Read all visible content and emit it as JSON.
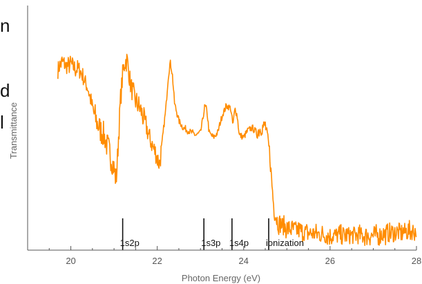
{
  "edge_text": [
    "n",
    "d",
    "l"
  ],
  "chart_data": {
    "type": "line",
    "title": "",
    "xlabel": "Photon Energy (eV)",
    "ylabel": "Transmittance",
    "xlim": [
      19,
      28
    ],
    "ylim": [
      0,
      1
    ],
    "x_ticks": [
      20,
      22,
      24,
      26,
      28
    ],
    "x_tick_labels": [
      "20",
      "22",
      "24",
      "26",
      "28"
    ],
    "grid": false,
    "series": [
      {
        "color": "#ff8c00",
        "noise": [
          [
            19.7,
            20.5,
            0.04
          ],
          [
            20.5,
            21.05,
            0.06
          ],
          [
            21.05,
            21.2,
            0.05
          ],
          [
            21.2,
            21.6,
            0.05
          ],
          [
            21.6,
            22.1,
            0.05
          ],
          [
            22.1,
            24.3,
            0.015
          ],
          [
            24.3,
            24.65,
            0.035
          ],
          [
            24.65,
            28.0,
            0.045
          ]
        ],
        "points": [
          [
            19.7,
            0.74
          ],
          [
            19.8,
            0.77
          ],
          [
            19.9,
            0.75
          ],
          [
            20.0,
            0.76
          ],
          [
            20.1,
            0.74
          ],
          [
            20.2,
            0.74
          ],
          [
            20.3,
            0.7
          ],
          [
            20.4,
            0.66
          ],
          [
            20.5,
            0.58
          ],
          [
            20.6,
            0.52
          ],
          [
            20.7,
            0.49
          ],
          [
            20.8,
            0.45
          ],
          [
            20.9,
            0.4
          ],
          [
            21.0,
            0.33
          ],
          [
            21.05,
            0.28
          ],
          [
            21.1,
            0.45
          ],
          [
            21.15,
            0.62
          ],
          [
            21.2,
            0.72
          ],
          [
            21.25,
            0.77
          ],
          [
            21.3,
            0.78
          ],
          [
            21.35,
            0.72
          ],
          [
            21.4,
            0.66
          ],
          [
            21.5,
            0.61
          ],
          [
            21.6,
            0.58
          ],
          [
            21.7,
            0.53
          ],
          [
            21.8,
            0.47
          ],
          [
            21.9,
            0.42
          ],
          [
            22.0,
            0.38
          ],
          [
            22.05,
            0.35
          ],
          [
            22.1,
            0.42
          ],
          [
            22.2,
            0.58
          ],
          [
            22.25,
            0.7
          ],
          [
            22.3,
            0.77
          ],
          [
            22.35,
            0.72
          ],
          [
            22.4,
            0.6
          ],
          [
            22.5,
            0.53
          ],
          [
            22.6,
            0.5
          ],
          [
            22.7,
            0.49
          ],
          [
            22.8,
            0.48
          ],
          [
            22.9,
            0.47
          ],
          [
            23.0,
            0.48
          ],
          [
            23.05,
            0.53
          ],
          [
            23.1,
            0.59
          ],
          [
            23.15,
            0.57
          ],
          [
            23.2,
            0.48
          ],
          [
            23.3,
            0.46
          ],
          [
            23.4,
            0.48
          ],
          [
            23.5,
            0.55
          ],
          [
            23.6,
            0.59
          ],
          [
            23.7,
            0.58
          ],
          [
            23.75,
            0.51
          ],
          [
            23.8,
            0.58
          ],
          [
            23.85,
            0.55
          ],
          [
            23.9,
            0.47
          ],
          [
            24.0,
            0.46
          ],
          [
            24.1,
            0.49
          ],
          [
            24.2,
            0.5
          ],
          [
            24.3,
            0.48
          ],
          [
            24.4,
            0.5
          ],
          [
            24.5,
            0.51
          ],
          [
            24.55,
            0.46
          ],
          [
            24.6,
            0.4
          ],
          [
            24.65,
            0.28
          ],
          [
            24.7,
            0.17
          ],
          [
            24.8,
            0.11
          ],
          [
            25.0,
            0.09
          ],
          [
            25.5,
            0.07
          ],
          [
            26.0,
            0.06
          ],
          [
            26.5,
            0.06
          ],
          [
            27.0,
            0.06
          ],
          [
            27.5,
            0.07
          ],
          [
            28.0,
            0.08
          ]
        ]
      }
    ],
    "markers": [
      {
        "x": 21.2,
        "label": "1s2p"
      },
      {
        "x": 23.08,
        "label": "1s3p"
      },
      {
        "x": 23.73,
        "label": "1s4p"
      },
      {
        "x": 24.58,
        "label": "ionization"
      }
    ],
    "marker_color": "#111111",
    "axis_color": "#555555"
  }
}
